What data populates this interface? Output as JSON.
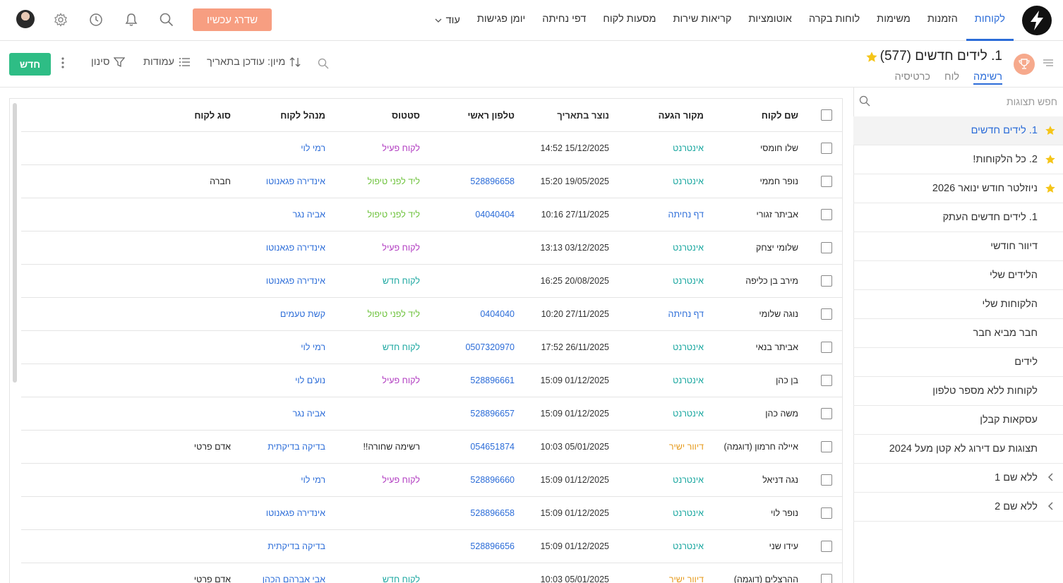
{
  "nav": {
    "items": [
      "לקוחות",
      "הזמנות",
      "משימות",
      "לוחות בקרה",
      "אוטומציות",
      "קריאות שירות",
      "מסעות לקוח",
      "דפי נחיתה",
      "יומן פגישות"
    ],
    "more_label": "עוד",
    "upgrade_label": "שדרג עכשיו"
  },
  "view": {
    "title": "1. לידים חדשים (577)",
    "tabs": [
      "רשימה",
      "לוח",
      "כרטיסיה"
    ]
  },
  "toolbar": {
    "new_label": "חדש",
    "filter_label": "סינון",
    "columns_label": "עמודות",
    "sort_label": "מיון: עודכן בתאריך"
  },
  "sidebar": {
    "search_placeholder": "חפש תצוגות",
    "items": [
      {
        "label": "1. לידים חדשים",
        "star": true
      },
      {
        "label": "2. כל הלקוחות!",
        "star": true
      },
      {
        "label": "ניוזלטר חודש ינואר 2026",
        "star": true
      },
      {
        "label": "1. לידים חדשים העתק",
        "star": false
      },
      {
        "label": "דיוור חודשי",
        "star": false
      },
      {
        "label": "הלידים שלי",
        "star": false
      },
      {
        "label": "הלקוחות שלי",
        "star": false
      },
      {
        "label": "חבר מביא חבר",
        "star": false
      },
      {
        "label": "לידים",
        "star": false
      },
      {
        "label": "לקוחות ללא מספר טלפון",
        "star": false
      },
      {
        "label": "עסקאות קבלן",
        "star": false
      },
      {
        "label": "תצוגות עם דירוג לא קטן מעל 2024",
        "star": false
      },
      {
        "label": "ללא שם 1",
        "star": false,
        "folder": true
      },
      {
        "label": "ללא שם 2",
        "star": false,
        "folder": true
      }
    ]
  },
  "table": {
    "headers": {
      "name": "שם לקוח",
      "source": "מקור הגעה",
      "created": "נוצר בתאריך",
      "phone": "טלפון ראשי",
      "status": "סטטוס",
      "manager": "מנהל לקוח",
      "type": "סוג לקוח"
    },
    "rows": [
      {
        "name": "שלו חומסי",
        "source": "אינטרנט",
        "created": "14:52 15/12/2025",
        "phone": "",
        "status": "לקוח פעיל",
        "manager": "רמי לוי",
        "type": ""
      },
      {
        "name": "נופר חממי",
        "source": "אינטרנט",
        "created": "15:20 19/05/2025",
        "phone": "528896658",
        "status": "ליד לפני טיפול",
        "manager": "אינדירה פגאנוטו",
        "type": "חברה"
      },
      {
        "name": "אביתר זגורי",
        "source": "דף נחיתה",
        "created": "10:16 27/11/2025",
        "phone": "04040404",
        "status": "ליד לפני טיפול",
        "manager": "אביה נגר",
        "type": ""
      },
      {
        "name": "שלומי יצחק",
        "source": "אינטרנט",
        "created": "13:13 03/12/2025",
        "phone": "",
        "status": "לקוח פעיל",
        "manager": "אינדירה פגאנוטו",
        "type": ""
      },
      {
        "name": "מירב בן כליפה",
        "source": "אינטרנט",
        "created": "16:25 20/08/2025",
        "phone": "",
        "status": "לקוח חדש",
        "manager": "אינדירה פגאנוטו",
        "type": ""
      },
      {
        "name": "נוגה שלומי",
        "source": "דף נחיתה",
        "created": "10:20 27/11/2025",
        "phone": "0404040",
        "status": "ליד לפני טיפול",
        "manager": "קשת טעמים",
        "type": ""
      },
      {
        "name": "אביתר בנאי",
        "source": "אינטרנט",
        "created": "17:52 26/11/2025",
        "phone": "0507320970",
        "status": "לקוח חדש",
        "manager": "רמי לוי",
        "type": ""
      },
      {
        "name": "בן כהן",
        "source": "אינטרנט",
        "created": "15:09 01/12/2025",
        "phone": "528896661",
        "status": "לקוח פעיל",
        "manager": "נוע'ם לוי",
        "type": ""
      },
      {
        "name": "משה כהן",
        "source": "אינטרנט",
        "created": "15:09 01/12/2025",
        "phone": "528896657",
        "status": "",
        "manager": "אביה נגר",
        "type": ""
      },
      {
        "name": "איילה חרמון (דוגמה)",
        "source": "דיוור ישיר",
        "created": "10:03 05/01/2025",
        "phone": "054651874",
        "status": "רשימה שחורה!!",
        "manager": "בדיקה בדיקתית",
        "type": "אדם פרטי"
      },
      {
        "name": "נגה דניאל",
        "source": "אינטרנט",
        "created": "15:09 01/12/2025",
        "phone": "528896660",
        "status": "לקוח פעיל",
        "manager": "רמי לוי",
        "type": ""
      },
      {
        "name": "נופר לוי",
        "source": "אינטרנט",
        "created": "15:09 01/12/2025",
        "phone": "528896658",
        "status": "",
        "manager": "אינדירה פגאנוטו",
        "type": ""
      },
      {
        "name": "עידו שני",
        "source": "אינטרנט",
        "created": "15:09 01/12/2025",
        "phone": "528896656",
        "status": "",
        "manager": "בדיקה בדיקתית",
        "type": ""
      },
      {
        "name": "ההרצלים (דוגמה)",
        "source": "דיוור ישיר",
        "created": "10:03 05/01/2025",
        "phone": "",
        "status": "לקוח חדש",
        "manager": "אבי אברהם הכהן",
        "type": "אדם פרטי"
      }
    ]
  },
  "colors": {
    "accent": "#2b6cd8",
    "new_button": "#2ebd85",
    "upgrade_button": "#f79e81",
    "source_internet": "#1aa7a0",
    "source_landing": "#2b6cd8",
    "source_mail": "#e69a1c",
    "status_active": "#b03ac0",
    "status_lead": "#6cc23a",
    "status_new": "#1aa7a0",
    "status_black": "#222222"
  },
  "icons": [
    "logo-icon",
    "search-icon",
    "bell-icon",
    "history-icon",
    "gear-icon",
    "trophy-icon",
    "star-icon",
    "filter-icon",
    "columns-icon",
    "sort-icon",
    "kebab-icon",
    "chevron-left-icon",
    "chevron-down-icon",
    "hamburger-icon"
  ]
}
